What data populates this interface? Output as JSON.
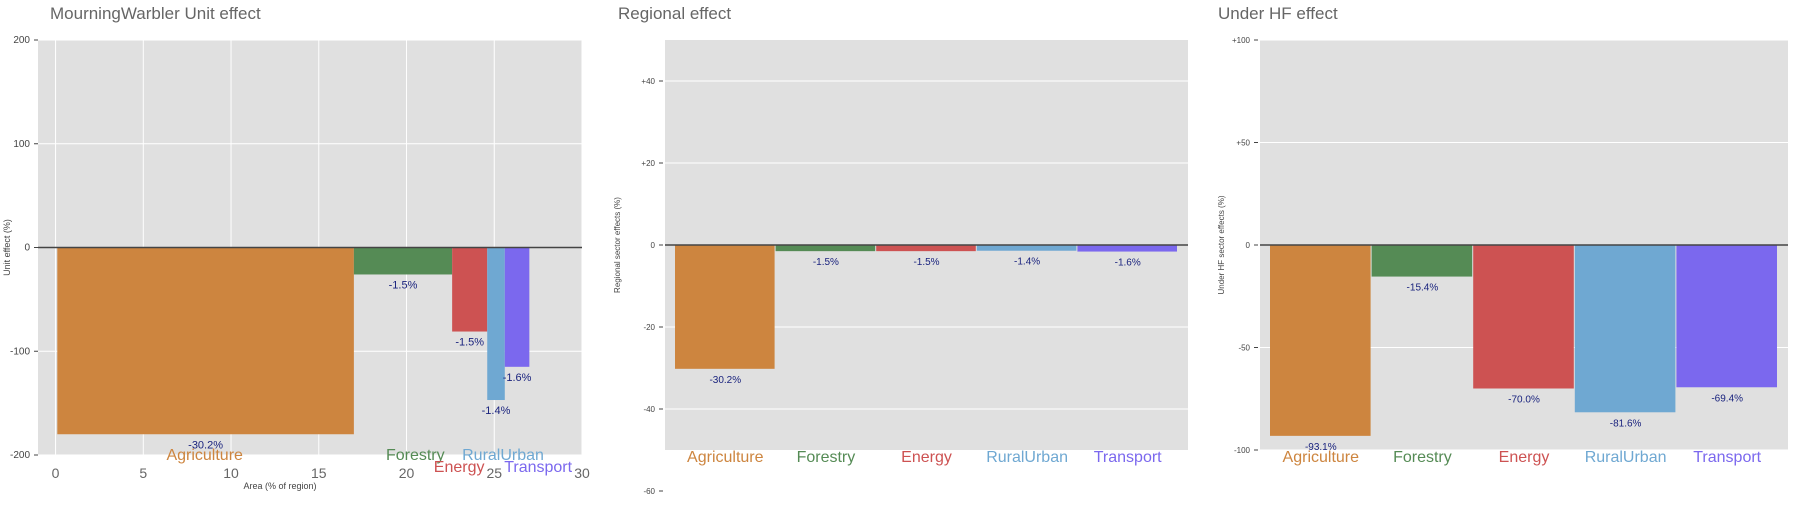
{
  "colors": {
    "plot_background": "#e0e0e0",
    "grid": "#ffffff",
    "baseline": "#444444",
    "value_label": "#1a237e",
    "title": "#666666",
    "Agriculture": "#cd853f",
    "Forestry": "#558b55",
    "Energy": "#cd5252",
    "RuralUrban": "#6fa8d2",
    "Transport": "#7b68ee"
  },
  "chart_data": [
    {
      "type": "bar",
      "variable_width": true,
      "title": "MourningWarbler Unit effect",
      "xlabel": "Area (% of region)",
      "ylabel": "Unit effect (%)",
      "xlim": [
        -1,
        30
      ],
      "ylim": [
        -200,
        200
      ],
      "x_ticks": [
        "0",
        "5",
        "10",
        "15",
        "20",
        "25",
        "30"
      ],
      "y_ticks": [
        "-200",
        "-100",
        "0",
        "100",
        "200"
      ],
      "grid": true,
      "bars": [
        {
          "category": "Agriculture",
          "x_start": 0.1,
          "x_end": 17.0,
          "value": -180,
          "label": "-30.2%"
        },
        {
          "category": "Forestry",
          "x_start": 17.0,
          "x_end": 22.6,
          "value": -26,
          "label": "-1.5%"
        },
        {
          "category": "Energy",
          "x_start": 22.6,
          "x_end": 24.6,
          "value": -81,
          "label": "-1.5%"
        },
        {
          "category": "RuralUrban",
          "x_start": 24.6,
          "x_end": 25.6,
          "value": -147,
          "label": "-1.4%"
        },
        {
          "category": "Transport",
          "x_start": 25.6,
          "x_end": 27.0,
          "value": -115,
          "label": "-1.6%"
        }
      ]
    },
    {
      "type": "bar",
      "title": "Regional effect",
      "xlabel": "",
      "ylabel": "Regional sector effects (%)",
      "ylim": [
        -50,
        50
      ],
      "y_ticks": [
        "-60",
        "-40",
        "-20",
        "0",
        "+20",
        "+40"
      ],
      "categories": [
        "Agriculture",
        "Forestry",
        "Energy",
        "RuralUrban",
        "Transport"
      ],
      "values": [
        -30.2,
        -1.5,
        -1.5,
        -1.4,
        -1.6
      ],
      "labels": [
        "-30.2%",
        "-1.5%",
        "-1.5%",
        "-1.4%",
        "-1.6%"
      ],
      "grid": true
    },
    {
      "type": "bar",
      "title": "Under HF effect",
      "xlabel": "",
      "ylabel": "Under HF sector effects (%)",
      "ylim": [
        -100,
        100
      ],
      "y_ticks": [
        "-100",
        "-50",
        "0",
        "+50",
        "+100"
      ],
      "categories": [
        "Agriculture",
        "Forestry",
        "Energy",
        "RuralUrban",
        "Transport"
      ],
      "values": [
        -93.1,
        -15.4,
        -70.0,
        -81.6,
        -69.4
      ],
      "labels": [
        "-93.1%",
        "-15.4%",
        "-70.0%",
        "-81.6%",
        "-69.4%"
      ],
      "grid": true
    }
  ]
}
